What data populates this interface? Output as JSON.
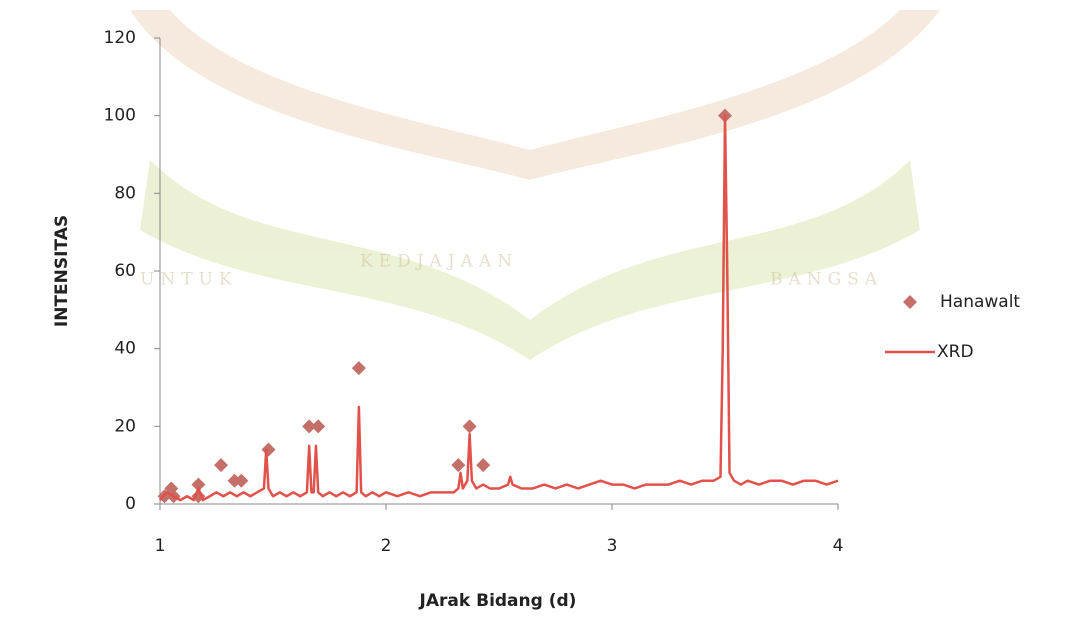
{
  "chart_data": {
    "type": "scatter",
    "xlabel": "JArak Bidang (d)",
    "ylabel": "INTENSITAS",
    "watermark": [
      "UNTUK",
      "KEDJAJAAN",
      "BANGSA"
    ],
    "xlim": [
      1,
      4
    ],
    "xticks": [
      1,
      2,
      3,
      4
    ],
    "ylim": [
      0,
      120
    ],
    "yticks": [
      0,
      20,
      40,
      60,
      80,
      100,
      120
    ],
    "grid": false,
    "legend": "right",
    "series": [
      {
        "name": "Hanawalt",
        "type": "scatter",
        "marker": "diamond",
        "color": "#c46f68",
        "x": [
          1.02,
          1.05,
          1.06,
          1.17,
          1.17,
          1.27,
          1.33,
          1.36,
          1.48,
          1.66,
          1.7,
          1.88,
          2.32,
          2.37,
          2.43,
          3.5
        ],
        "values": [
          2,
          4,
          2,
          5,
          2,
          10,
          6,
          6,
          14,
          20,
          20,
          35,
          10,
          20,
          10,
          100
        ]
      },
      {
        "name": "XRD",
        "type": "line",
        "color": "#e0524a",
        "x": [
          1.0,
          1.03,
          1.06,
          1.09,
          1.12,
          1.15,
          1.17,
          1.19,
          1.22,
          1.25,
          1.28,
          1.31,
          1.34,
          1.37,
          1.4,
          1.43,
          1.46,
          1.47,
          1.48,
          1.5,
          1.53,
          1.56,
          1.59,
          1.62,
          1.65,
          1.66,
          1.67,
          1.68,
          1.69,
          1.7,
          1.72,
          1.75,
          1.78,
          1.81,
          1.84,
          1.87,
          1.88,
          1.89,
          1.91,
          1.94,
          1.97,
          2.0,
          2.05,
          2.1,
          2.15,
          2.2,
          2.25,
          2.3,
          2.32,
          2.33,
          2.34,
          2.36,
          2.37,
          2.38,
          2.4,
          2.43,
          2.46,
          2.5,
          2.54,
          2.55,
          2.56,
          2.6,
          2.65,
          2.7,
          2.75,
          2.8,
          2.85,
          2.9,
          2.95,
          3.0,
          3.05,
          3.1,
          3.15,
          3.2,
          3.25,
          3.3,
          3.35,
          3.4,
          3.45,
          3.48,
          3.49,
          3.5,
          3.51,
          3.52,
          3.54,
          3.57,
          3.6,
          3.65,
          3.7,
          3.75,
          3.8,
          3.85,
          3.9,
          3.95,
          4.0
        ],
        "values": [
          1,
          3,
          2,
          1,
          2,
          1,
          4,
          1,
          2,
          3,
          2,
          3,
          2,
          3,
          2,
          3,
          4,
          14,
          4,
          2,
          3,
          2,
          3,
          2,
          3,
          15,
          3,
          3,
          15,
          3,
          2,
          3,
          2,
          3,
          2,
          3,
          25,
          3,
          2,
          3,
          2,
          3,
          2,
          3,
          2,
          3,
          3,
          3,
          4,
          8,
          4,
          6,
          18,
          6,
          4,
          5,
          4,
          4,
          5,
          7,
          5,
          4,
          4,
          5,
          4,
          5,
          4,
          5,
          6,
          5,
          5,
          4,
          5,
          5,
          5,
          6,
          5,
          6,
          6,
          7,
          40,
          100,
          60,
          8,
          6,
          5,
          6,
          5,
          6,
          6,
          5,
          6,
          6,
          5,
          6
        ]
      }
    ]
  }
}
